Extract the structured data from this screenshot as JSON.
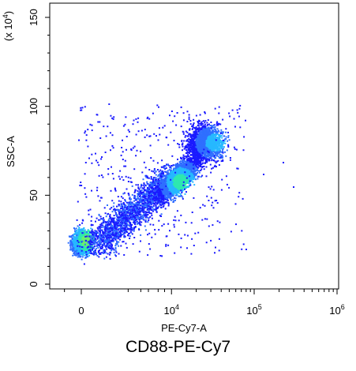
{
  "chart_data": {
    "type": "scatter",
    "subtype": "flow-cytometry-density-dot-plot",
    "caption": "CD88-PE-Cy7",
    "xlabel": "PE-Cy7-A",
    "ylabel": "SSC-A",
    "y_multiplier": "(x 10",
    "y_multiplier_exp": "4",
    "y_multiplier_close": ")",
    "x_scale": "biexponential",
    "y_scale": "linear",
    "x_tick_labels": [
      {
        "base": "0",
        "exp": "",
        "value": 0
      },
      {
        "base": "10",
        "exp": "4",
        "value": 10000
      },
      {
        "base": "10",
        "exp": "5",
        "value": 100000
      },
      {
        "base": "10",
        "exp": "6",
        "value": 1000000
      }
    ],
    "y_ticks": [
      0,
      50,
      100,
      150
    ],
    "y_tick_labels": [
      "0",
      "50",
      "100",
      "150"
    ],
    "ylim": [
      0,
      158
    ],
    "grid": false,
    "color_scale": [
      "#1a1aff",
      "#2f6fff",
      "#26b8ff",
      "#2ee8b0",
      "#6cf06c"
    ],
    "populations": [
      {
        "name": "",
        "x_center": 0,
        "y_center": 24,
        "x_spread": "narrow",
        "y_spread": 6,
        "density": "highest"
      },
      {
        "name": "",
        "x_center": 12000,
        "y_center": 60,
        "x_spread": "wide",
        "y_spread": 14,
        "density": "high"
      },
      {
        "name": "",
        "x_center": 25000,
        "y_center": 80,
        "x_spread": "wide",
        "y_spread": 10,
        "density": "medium"
      }
    ],
    "x_range_events": [
      -1500,
      300000
    ],
    "y_range_events": [
      14,
      103
    ]
  }
}
